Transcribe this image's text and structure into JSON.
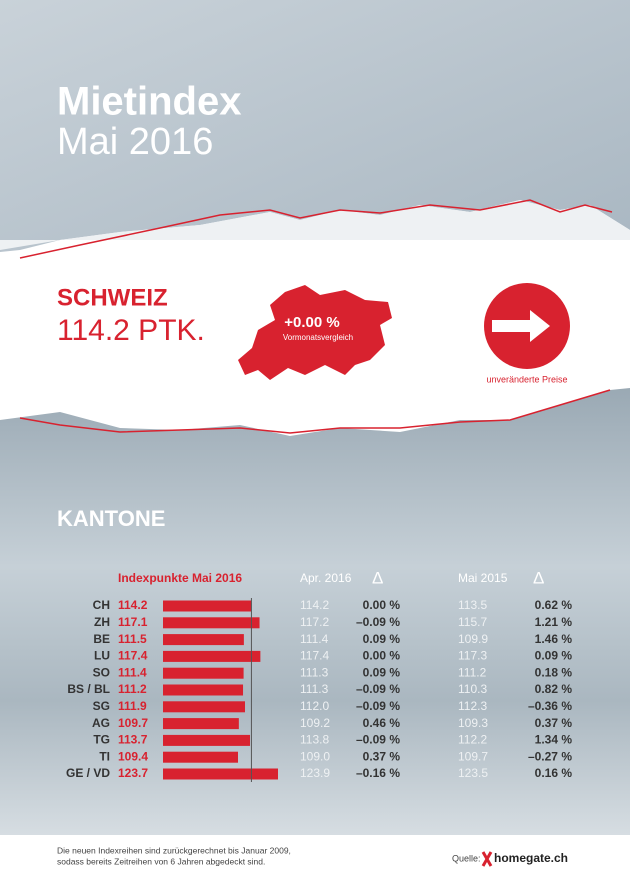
{
  "header": {
    "title": "Mietindex",
    "subtitle": "Mai 2016"
  },
  "schweiz": {
    "title": "SCHWEIZ",
    "value": "114.2 PTK.",
    "change": "+0.00 %",
    "change_label": "Vormonatsvergleich",
    "arrow_label": "unveränderte Preise"
  },
  "kantone": {
    "title": "KANTONE",
    "columns": [
      "Indexpunkte Mai 2016",
      "Apr. 2016",
      "Δ",
      "Mai 2015",
      "Δ"
    ],
    "rows": [
      [
        "CH",
        114.2,
        "114.2",
        "0.00 %",
        "113.5",
        "0.62 %"
      ],
      [
        "ZH",
        117.1,
        "117.2",
        "–0.09 %",
        "115.7",
        "1.21 %"
      ],
      [
        "BE",
        111.5,
        "111.4",
        "0.09 %",
        "109.9",
        "1.46 %"
      ],
      [
        "LU",
        117.4,
        "117.4",
        "0.00 %",
        "117.3",
        "0.09 %"
      ],
      [
        "SO",
        111.4,
        "111.3",
        "0.09 %",
        "111.2",
        "0.18 %"
      ],
      [
        "BS / BL",
        111.2,
        "111.3",
        "–0.09 %",
        "110.3",
        "0.82 %"
      ],
      [
        "SG",
        111.9,
        "112.0",
        "–0.09 %",
        "112.3",
        "–0.36 %"
      ],
      [
        "AG",
        109.7,
        "109.2",
        "0.46 %",
        "109.3",
        "0.37 %"
      ],
      [
        "TG",
        113.7,
        "113.8",
        "–0.09 %",
        "112.2",
        "1.34 %"
      ],
      [
        "TI",
        109.4,
        "109.0",
        "0.37 %",
        "109.7",
        "–0.27 %"
      ],
      [
        "GE / VD",
        123.7,
        "123.9",
        "–0.16 %",
        "123.5",
        "0.16 %"
      ]
    ]
  },
  "footer": {
    "note_line1": "Die neuen Indexreihen sind zurückgerechnet bis Januar 2009,",
    "note_line2": "sodass bereits Zeitreihen von 6 Jahren abgedeckt sind.",
    "source": "Quelle:",
    "brand": "homegate.ch"
  }
}
